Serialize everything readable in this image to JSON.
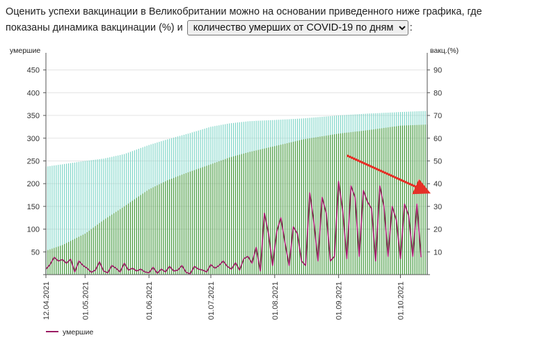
{
  "intro": {
    "text_before": "Оценить успехи вакцинации в Великобритании можно на основании приведенного ниже графика, где показаны динамика вакцинации (%) и",
    "text_after": ":",
    "select_value": "количество умерших от COVID-19 по дням"
  },
  "colors": {
    "deaths": "#9b1b63",
    "vacc_one_dose": "#7fd6c8",
    "vacc_full": "#4c9a3c",
    "arrow": "#e53027",
    "grid": "#e3e3e3"
  },
  "chart_data": {
    "type": "bar+line",
    "y_left": {
      "label": "умершие",
      "range": [
        0,
        480
      ],
      "ticks": [
        50,
        100,
        150,
        200,
        250,
        300,
        350,
        400,
        450
      ]
    },
    "y_right": {
      "label": "вакц.(%)",
      "range": [
        0,
        96
      ],
      "ticks": [
        10,
        20,
        30,
        40,
        50,
        60,
        70,
        80,
        90
      ]
    },
    "x_range": [
      "2021-04-12",
      "2021-10-14"
    ],
    "x_ticks": [
      "12.04.2021",
      "01.05.2021",
      "01.06.2021",
      "01.07.2021",
      "01.08.2021",
      "01.09.2021",
      "01.10.2021"
    ],
    "legend": [
      {
        "name": "умершие"
      }
    ],
    "vacc_one_dose_pct": [
      [
        "2021-04-12",
        47.5
      ],
      [
        "2021-04-20",
        48.5
      ],
      [
        "2021-05-01",
        50.0
      ],
      [
        "2021-05-10",
        51.0
      ],
      [
        "2021-05-20",
        53.0
      ],
      [
        "2021-06-01",
        57.0
      ],
      [
        "2021-06-10",
        59.5
      ],
      [
        "2021-06-20",
        62.0
      ],
      [
        "2021-07-01",
        65.0
      ],
      [
        "2021-07-10",
        66.5
      ],
      [
        "2021-07-20",
        67.5
      ],
      [
        "2021-08-01",
        68.0
      ],
      [
        "2021-08-15",
        68.7
      ],
      [
        "2021-09-01",
        70.0
      ],
      [
        "2021-09-15",
        70.8
      ],
      [
        "2021-10-01",
        71.5
      ],
      [
        "2021-10-14",
        72.0
      ]
    ],
    "vacc_full_pct": [
      [
        "2021-04-12",
        10.5
      ],
      [
        "2021-04-20",
        13.0
      ],
      [
        "2021-05-01",
        18.0
      ],
      [
        "2021-05-10",
        24.0
      ],
      [
        "2021-05-20",
        30.0
      ],
      [
        "2021-06-01",
        37.5
      ],
      [
        "2021-06-10",
        41.5
      ],
      [
        "2021-06-20",
        45.0
      ],
      [
        "2021-07-01",
        48.5
      ],
      [
        "2021-07-10",
        51.5
      ],
      [
        "2021-07-20",
        54.0
      ],
      [
        "2021-08-01",
        56.5
      ],
      [
        "2021-08-15",
        59.5
      ],
      [
        "2021-09-01",
        62.0
      ],
      [
        "2021-09-15",
        63.5
      ],
      [
        "2021-10-01",
        65.5
      ],
      [
        "2021-10-14",
        66.0
      ]
    ],
    "deaths": [
      [
        "2021-04-12",
        12
      ],
      [
        "2021-04-14",
        22
      ],
      [
        "2021-04-16",
        38
      ],
      [
        "2021-04-18",
        30
      ],
      [
        "2021-04-20",
        33
      ],
      [
        "2021-04-22",
        25
      ],
      [
        "2021-04-24",
        34
      ],
      [
        "2021-04-26",
        6
      ],
      [
        "2021-04-28",
        30
      ],
      [
        "2021-04-30",
        20
      ],
      [
        "2021-05-02",
        14
      ],
      [
        "2021-05-04",
        5
      ],
      [
        "2021-05-06",
        10
      ],
      [
        "2021-05-08",
        28
      ],
      [
        "2021-05-10",
        8
      ],
      [
        "2021-05-12",
        4
      ],
      [
        "2021-05-14",
        20
      ],
      [
        "2021-05-16",
        14
      ],
      [
        "2021-05-18",
        6
      ],
      [
        "2021-05-20",
        25
      ],
      [
        "2021-05-22",
        10
      ],
      [
        "2021-05-24",
        14
      ],
      [
        "2021-05-26",
        8
      ],
      [
        "2021-05-28",
        12
      ],
      [
        "2021-05-30",
        6
      ],
      [
        "2021-06-01",
        4
      ],
      [
        "2021-06-03",
        16
      ],
      [
        "2021-06-05",
        3
      ],
      [
        "2021-06-07",
        12
      ],
      [
        "2021-06-09",
        6
      ],
      [
        "2021-06-11",
        18
      ],
      [
        "2021-06-13",
        8
      ],
      [
        "2021-06-15",
        10
      ],
      [
        "2021-06-17",
        20
      ],
      [
        "2021-06-19",
        5
      ],
      [
        "2021-06-21",
        2
      ],
      [
        "2021-06-23",
        18
      ],
      [
        "2021-06-25",
        12
      ],
      [
        "2021-06-27",
        10
      ],
      [
        "2021-06-29",
        6
      ],
      [
        "2021-07-01",
        22
      ],
      [
        "2021-07-03",
        14
      ],
      [
        "2021-07-05",
        20
      ],
      [
        "2021-07-07",
        30
      ],
      [
        "2021-07-09",
        18
      ],
      [
        "2021-07-11",
        12
      ],
      [
        "2021-07-13",
        26
      ],
      [
        "2021-07-15",
        10
      ],
      [
        "2021-07-17",
        35
      ],
      [
        "2021-07-19",
        40
      ],
      [
        "2021-07-21",
        25
      ],
      [
        "2021-07-23",
        60
      ],
      [
        "2021-07-25",
        8
      ],
      [
        "2021-07-27",
        135
      ],
      [
        "2021-07-29",
        90
      ],
      [
        "2021-07-31",
        20
      ],
      [
        "2021-08-02",
        95
      ],
      [
        "2021-08-04",
        125
      ],
      [
        "2021-08-06",
        70
      ],
      [
        "2021-08-08",
        20
      ],
      [
        "2021-08-10",
        105
      ],
      [
        "2021-08-12",
        90
      ],
      [
        "2021-08-14",
        30
      ],
      [
        "2021-08-16",
        20
      ],
      [
        "2021-08-18",
        180
      ],
      [
        "2021-08-20",
        115
      ],
      [
        "2021-08-22",
        30
      ],
      [
        "2021-08-24",
        170
      ],
      [
        "2021-08-26",
        135
      ],
      [
        "2021-08-28",
        30
      ],
      [
        "2021-08-30",
        40
      ],
      [
        "2021-09-01",
        205
      ],
      [
        "2021-09-03",
        140
      ],
      [
        "2021-09-05",
        35
      ],
      [
        "2021-09-07",
        195
      ],
      [
        "2021-09-09",
        170
      ],
      [
        "2021-09-11",
        40
      ],
      [
        "2021-09-13",
        185
      ],
      [
        "2021-09-15",
        160
      ],
      [
        "2021-09-17",
        145
      ],
      [
        "2021-09-19",
        30
      ],
      [
        "2021-09-21",
        195
      ],
      [
        "2021-09-23",
        150
      ],
      [
        "2021-09-25",
        40
      ],
      [
        "2021-09-27",
        150
      ],
      [
        "2021-09-29",
        120
      ],
      [
        "2021-10-01",
        35
      ],
      [
        "2021-10-03",
        155
      ],
      [
        "2021-10-05",
        130
      ],
      [
        "2021-10-07",
        40
      ],
      [
        "2021-10-09",
        155
      ],
      [
        "2021-10-11",
        38
      ]
    ]
  }
}
